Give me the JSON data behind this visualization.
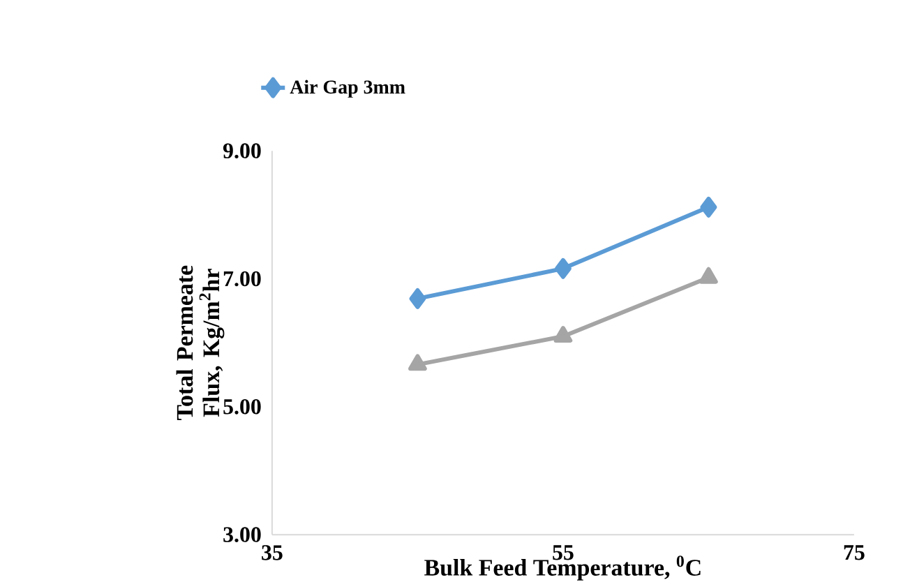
{
  "chart_data": {
    "type": "line",
    "xlabel": "Bulk Feed Temperature, $^{0}$C",
    "ylabel": "Total Permeate Flux, Kg/m$^{2}$hr",
    "x": [
      45,
      55,
      65
    ],
    "series": [
      {
        "name": "Air Gap 3mm",
        "color": "#5b9bd5",
        "marker": "diamond",
        "values": [
          6.69,
          7.16,
          8.12
        ]
      },
      {
        "color": "#a5a5a5",
        "marker": "triangle",
        "values": [
          5.66,
          6.1,
          7.02
        ]
      }
    ],
    "xlim": [
      35,
      75
    ],
    "xticks": [
      35,
      55,
      75
    ],
    "ylim": [
      3,
      9
    ],
    "yticks": [
      {
        "value": 3,
        "label": "3.00"
      },
      {
        "value": 5,
        "label": "5.00"
      },
      {
        "value": 7,
        "label": "7.00"
      },
      {
        "value": 9,
        "label": "9.00"
      }
    ],
    "grid": false,
    "legend": "top left"
  }
}
